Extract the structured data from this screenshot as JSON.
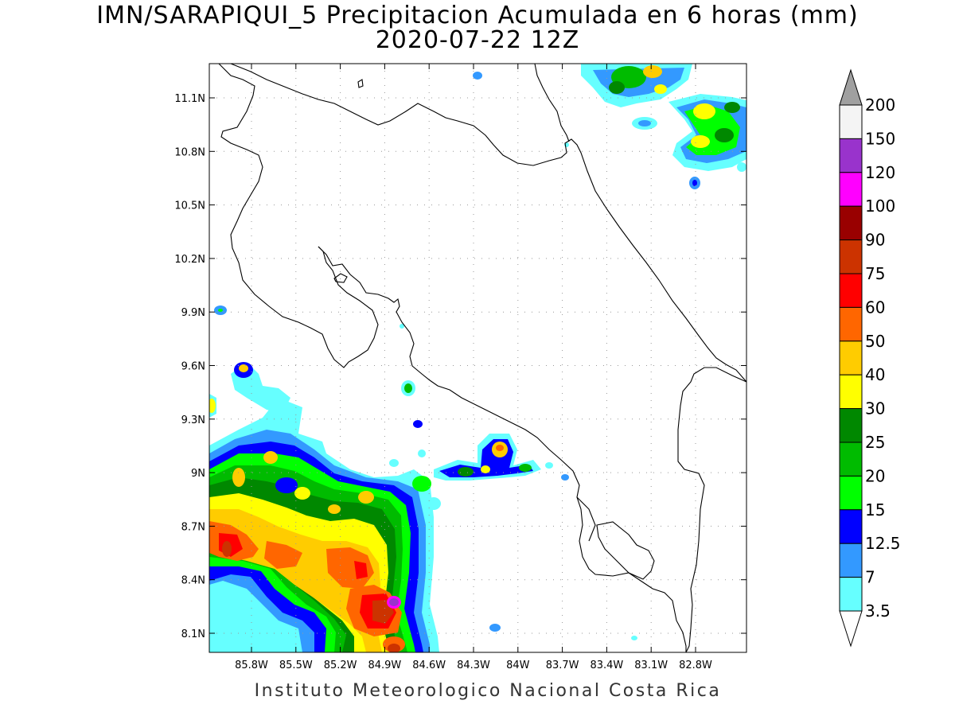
{
  "title": {
    "line1": "IMN/SARAPIQUI_5 Precipitacion Acumulada en 6 horas (mm)",
    "line2": "2020-07-22 12Z"
  },
  "credit": "Instituto Meteorologico Nacional Costa Rica",
  "map": {
    "lon_range": [
      -86.05,
      -83.05
    ],
    "lat_range": [
      8.0,
      11.3
    ],
    "lat_ticks": [
      {
        "lat": 11.1,
        "label": "11.1N"
      },
      {
        "lat": 10.8,
        "label": "10.8N"
      },
      {
        "lat": 10.5,
        "label": "10.5N"
      },
      {
        "lat": 10.2,
        "label": "10.2N"
      },
      {
        "lat": 9.9,
        "label": "9.9N"
      },
      {
        "lat": 9.6,
        "label": "9.6N"
      },
      {
        "lat": 9.3,
        "label": "9.3N"
      },
      {
        "lat": 9.0,
        "label": "9N"
      },
      {
        "lat": 8.7,
        "label": "8.7N"
      },
      {
        "lat": 8.4,
        "label": "8.4N"
      },
      {
        "lat": 8.1,
        "label": "8.1N"
      }
    ],
    "lon_ticks": [
      {
        "lon": -85.8,
        "label": "85.8W"
      },
      {
        "lon": -85.5,
        "label": "85.5W"
      },
      {
        "lon": -85.2,
        "label": "85.2W"
      },
      {
        "lon": -84.9,
        "label": "84.9W"
      },
      {
        "lon": -84.6,
        "label": "84.6W"
      },
      {
        "lon": -84.3,
        "label": "84.3W"
      },
      {
        "lon": -84.0,
        "label": "84W"
      },
      {
        "lon": -83.7,
        "label": "83.7W"
      },
      {
        "lon": -83.4,
        "label": "83.4W"
      },
      {
        "lon": -83.1,
        "label": "83.1W"
      },
      {
        "lon": -82.8,
        "label": "82.8W"
      }
    ],
    "grid": true
  },
  "colorbar": {
    "levels": [
      "200",
      "150",
      "120",
      "100",
      "90",
      "75",
      "60",
      "50",
      "40",
      "30",
      "25",
      "20",
      "15",
      "12.5",
      "7",
      "3.5"
    ],
    "colors": [
      "#f4f4f4",
      "#9933cc",
      "#ff00ff",
      "#990000",
      "#cc3300",
      "#ff0000",
      "#ff6600",
      "#ffcc00",
      "#ffff00",
      "#008800",
      "#00bb00",
      "#00ff00",
      "#0000ff",
      "#3399ff",
      "#66ffff"
    ],
    "over_color": "#a0a0a0",
    "under_color": "#ffffff"
  }
}
